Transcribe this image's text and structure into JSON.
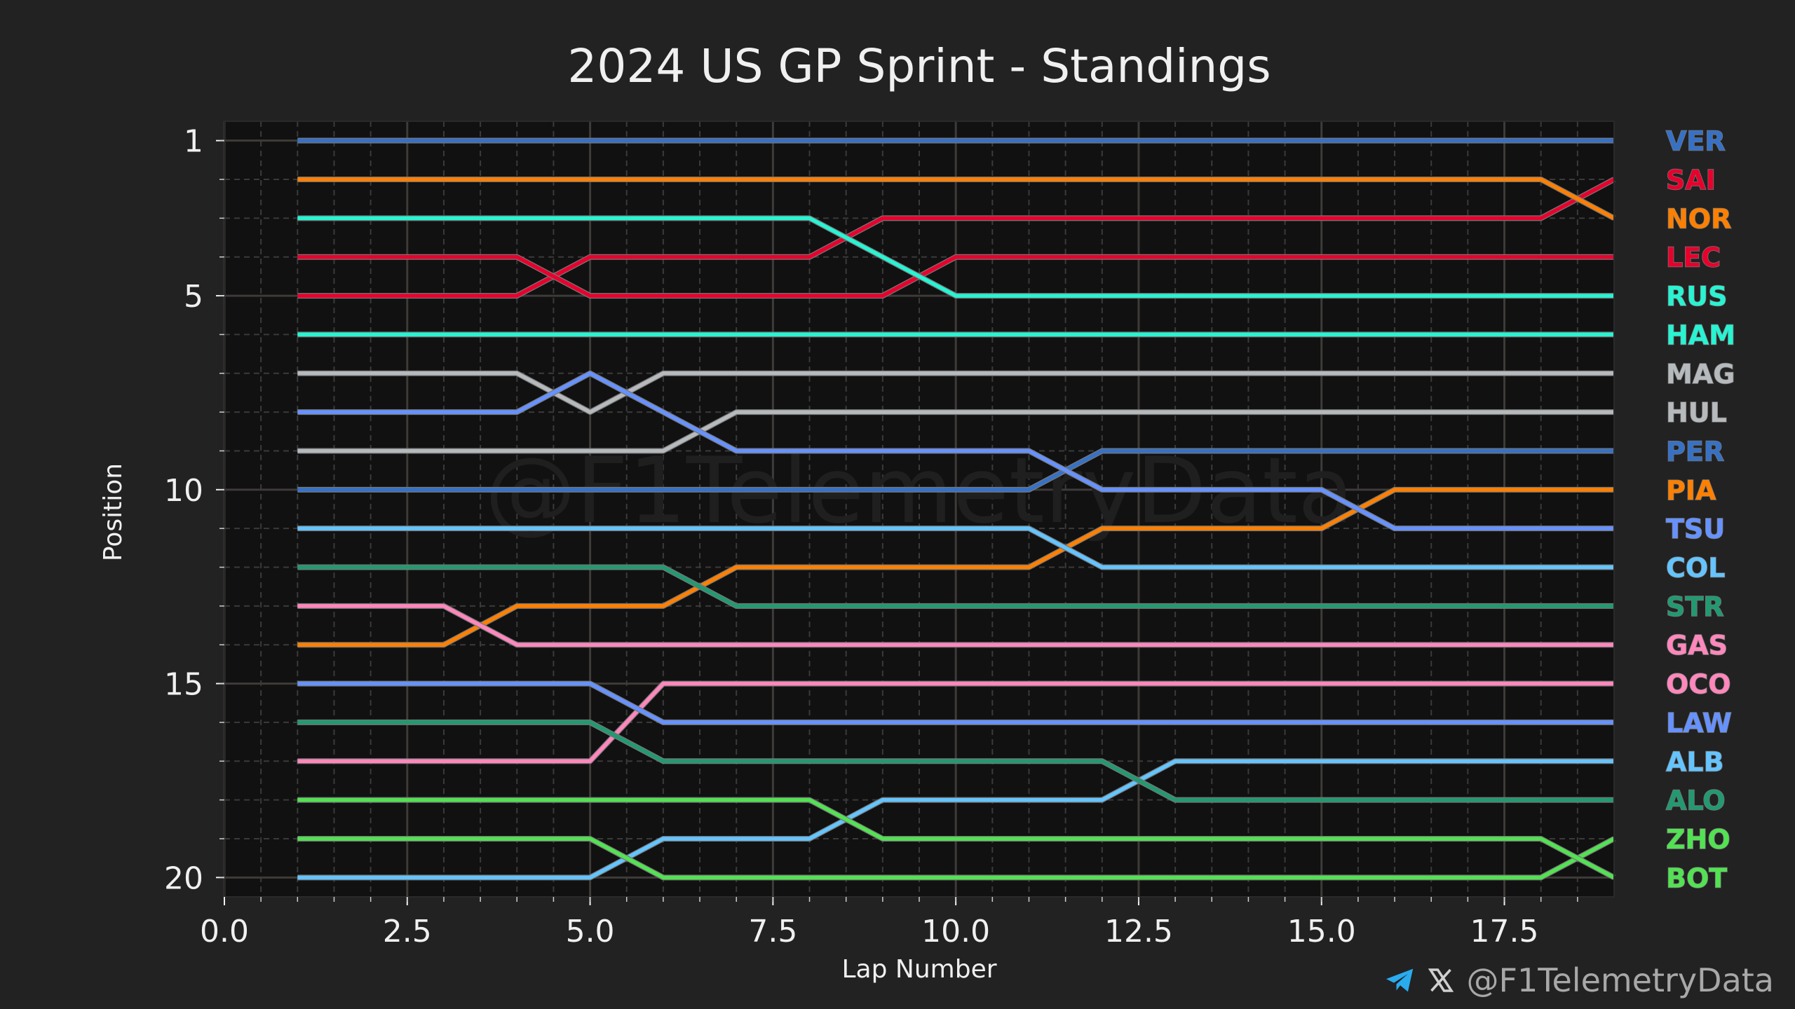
{
  "chart_data": {
    "type": "line",
    "title": "2024 US GP Sprint - Standings",
    "xlabel": "Lap Number",
    "ylabel": "Position",
    "xlim": [
      0,
      19
    ],
    "ylim": [
      20.5,
      0.5
    ],
    "y_inverted": true,
    "xticks": [
      "0.0",
      "2.5",
      "5.0",
      "7.5",
      "10.0",
      "12.5",
      "15.0",
      "17.5"
    ],
    "xtick_values": [
      0,
      2.5,
      5,
      7.5,
      10,
      12.5,
      15,
      17.5
    ],
    "yticks": [
      "1",
      "5",
      "10",
      "15",
      "20"
    ],
    "ytick_values": [
      1,
      5,
      10,
      15,
      20
    ],
    "grid": true,
    "legend_placement": "right, labels ordered by final position",
    "watermark": "@F1TelemetryData",
    "laps": [
      1,
      2,
      3,
      4,
      5,
      6,
      7,
      8,
      9,
      10,
      11,
      12,
      13,
      14,
      15,
      16,
      17,
      18,
      19
    ],
    "series": [
      {
        "name": "VER",
        "color": "#3671C6",
        "values": [
          1,
          1,
          1,
          1,
          1,
          1,
          1,
          1,
          1,
          1,
          1,
          1,
          1,
          1,
          1,
          1,
          1,
          1,
          1
        ]
      },
      {
        "name": "SAI",
        "color": "#E8002D",
        "values": [
          5,
          5,
          5,
          5,
          4,
          4,
          4,
          4,
          3,
          3,
          3,
          3,
          3,
          3,
          3,
          3,
          3,
          3,
          2
        ]
      },
      {
        "name": "NOR",
        "color": "#FF8000",
        "values": [
          2,
          2,
          2,
          2,
          2,
          2,
          2,
          2,
          2,
          2,
          2,
          2,
          2,
          2,
          2,
          2,
          2,
          2,
          3
        ]
      },
      {
        "name": "LEC",
        "color": "#E8002D",
        "values": [
          4,
          4,
          4,
          4,
          5,
          5,
          5,
          5,
          5,
          4,
          4,
          4,
          4,
          4,
          4,
          4,
          4,
          4,
          4
        ]
      },
      {
        "name": "RUS",
        "color": "#27F4D2",
        "values": [
          3,
          3,
          3,
          3,
          3,
          3,
          3,
          3,
          4,
          5,
          5,
          5,
          5,
          5,
          5,
          5,
          5,
          5,
          5
        ]
      },
      {
        "name": "HAM",
        "color": "#27F4D2",
        "values": [
          6,
          6,
          6,
          6,
          6,
          6,
          6,
          6,
          6,
          6,
          6,
          6,
          6,
          6,
          6,
          6,
          6,
          6,
          6
        ]
      },
      {
        "name": "MAG",
        "color": "#B6BABD",
        "values": [
          7,
          7,
          7,
          7,
          8,
          7,
          7,
          7,
          7,
          7,
          7,
          7,
          7,
          7,
          7,
          7,
          7,
          7,
          7
        ]
      },
      {
        "name": "HUL",
        "color": "#B6BABD",
        "values": [
          9,
          9,
          9,
          9,
          9,
          9,
          8,
          8,
          8,
          8,
          8,
          8,
          8,
          8,
          8,
          8,
          8,
          8,
          8
        ]
      },
      {
        "name": "PER",
        "color": "#3671C6",
        "values": [
          10,
          10,
          10,
          10,
          10,
          10,
          10,
          10,
          10,
          10,
          10,
          9,
          9,
          9,
          9,
          9,
          9,
          9,
          9
        ]
      },
      {
        "name": "PIA",
        "color": "#FF8000",
        "values": [
          14,
          14,
          14,
          13,
          13,
          13,
          12,
          12,
          12,
          12,
          12,
          11,
          11,
          11,
          11,
          10,
          10,
          10,
          10
        ]
      },
      {
        "name": "TSU",
        "color": "#6692FF",
        "values": [
          8,
          8,
          8,
          8,
          7,
          8,
          9,
          9,
          9,
          9,
          9,
          10,
          10,
          10,
          10,
          11,
          11,
          11,
          11
        ]
      },
      {
        "name": "COL",
        "color": "#64C4FF",
        "values": [
          11,
          11,
          11,
          11,
          11,
          11,
          11,
          11,
          11,
          11,
          11,
          12,
          12,
          12,
          12,
          12,
          12,
          12,
          12
        ]
      },
      {
        "name": "STR",
        "color": "#229971",
        "values": [
          12,
          12,
          12,
          12,
          12,
          12,
          13,
          13,
          13,
          13,
          13,
          13,
          13,
          13,
          13,
          13,
          13,
          13,
          13
        ]
      },
      {
        "name": "GAS",
        "color": "#FF87BC",
        "values": [
          13,
          13,
          13,
          14,
          14,
          14,
          14,
          14,
          14,
          14,
          14,
          14,
          14,
          14,
          14,
          14,
          14,
          14,
          14
        ]
      },
      {
        "name": "OCO",
        "color": "#FF87BC",
        "values": [
          17,
          17,
          17,
          17,
          17,
          15,
          15,
          15,
          15,
          15,
          15,
          15,
          15,
          15,
          15,
          15,
          15,
          15,
          15
        ]
      },
      {
        "name": "LAW",
        "color": "#6692FF",
        "values": [
          15,
          15,
          15,
          15,
          15,
          16,
          16,
          16,
          16,
          16,
          16,
          16,
          16,
          16,
          16,
          16,
          16,
          16,
          16
        ]
      },
      {
        "name": "ALB",
        "color": "#64C4FF",
        "values": [
          20,
          20,
          20,
          20,
          20,
          19,
          19,
          19,
          18,
          18,
          18,
          18,
          17,
          17,
          17,
          17,
          17,
          17,
          17
        ]
      },
      {
        "name": "ALO",
        "color": "#229971",
        "values": [
          16,
          16,
          16,
          16,
          16,
          17,
          17,
          17,
          17,
          17,
          17,
          17,
          18,
          18,
          18,
          18,
          18,
          18,
          18
        ]
      },
      {
        "name": "ZHO",
        "color": "#52E252",
        "values": [
          19,
          19,
          19,
          19,
          19,
          20,
          20,
          20,
          20,
          20,
          20,
          20,
          20,
          20,
          20,
          20,
          20,
          20,
          19
        ]
      },
      {
        "name": "BOT",
        "color": "#52E252",
        "values": [
          18,
          18,
          18,
          18,
          18,
          18,
          18,
          18,
          19,
          19,
          19,
          19,
          19,
          19,
          19,
          19,
          19,
          19,
          20
        ]
      }
    ]
  },
  "footer": {
    "handle": "@F1TelemetryData",
    "telegram_icon": "telegram-icon",
    "x_icon": "x-logo-icon"
  }
}
